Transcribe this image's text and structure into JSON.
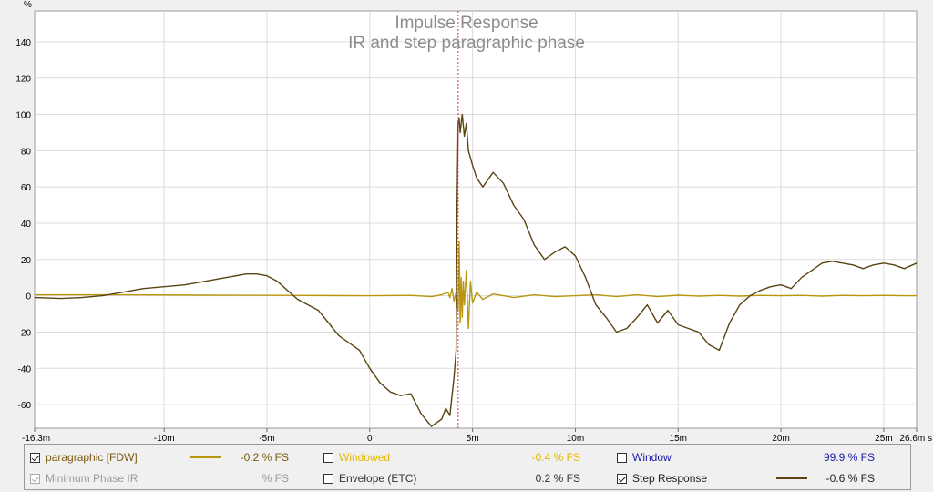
{
  "chart_data": {
    "type": "line",
    "title": "Impulse Response",
    "subtitle": "IR and step paragraphic phase",
    "ylabel": "%",
    "xlabel": "",
    "ylim": [
      -73,
      157
    ],
    "xlim": [
      -16.3,
      26.6
    ],
    "y_ticks": [
      -60,
      -40,
      -20,
      0,
      20,
      40,
      60,
      80,
      100,
      120,
      140
    ],
    "x_ticks": [
      {
        "value": -16.3,
        "label": "-16.3m"
      },
      {
        "value": -10,
        "label": "-10m"
      },
      {
        "value": -5,
        "label": "-5m"
      },
      {
        "value": 0,
        "label": "0"
      },
      {
        "value": 5,
        "label": "5m"
      },
      {
        "value": 10,
        "label": "10m"
      },
      {
        "value": 15,
        "label": "15m"
      },
      {
        "value": 20,
        "label": "20m"
      },
      {
        "value": 25,
        "label": "25m"
      },
      {
        "value": 26.6,
        "label": "26.6m s"
      }
    ],
    "grid": true,
    "marker_x": 4.3,
    "series": [
      {
        "name": "Step Response",
        "color": "#5a4512",
        "x": [
          -16.3,
          -15,
          -14,
          -13,
          -12,
          -11,
          -10,
          -9,
          -8,
          -7,
          -6,
          -5.5,
          -5,
          -4.5,
          -4,
          -3.5,
          -3,
          -2.5,
          -2,
          -1.5,
          -1,
          -0.5,
          0,
          0.5,
          1,
          1.5,
          2,
          2.5,
          3,
          3.5,
          3.7,
          3.9,
          4.0,
          4.1,
          4.2,
          4.25,
          4.3,
          4.35,
          4.4,
          4.5,
          4.6,
          4.7,
          4.8,
          5.0,
          5.2,
          5.5,
          6.0,
          6.5,
          7.0,
          7.5,
          8.0,
          8.5,
          9.0,
          9.5,
          10.0,
          10.5,
          11.0,
          11.5,
          12.0,
          12.5,
          13.0,
          13.5,
          14.0,
          14.5,
          15.0,
          15.5,
          16.0,
          16.5,
          17.0,
          17.5,
          18.0,
          18.5,
          19.0,
          19.5,
          20.0,
          20.5,
          21.0,
          21.5,
          22.0,
          22.5,
          23.0,
          23.5,
          24.0,
          24.5,
          25.0,
          25.5,
          26.0,
          26.6
        ],
        "y": [
          -1,
          -1.5,
          -1,
          0,
          2,
          4,
          5,
          6,
          8,
          10,
          12,
          12,
          11,
          8,
          3,
          -2,
          -5,
          -8,
          -15,
          -22,
          -26,
          -30,
          -40,
          -48,
          -53,
          -55,
          -54,
          -65,
          -72,
          -68,
          -62,
          -66,
          -55,
          -45,
          -30,
          50,
          95,
          98,
          90,
          100,
          88,
          95,
          80,
          72,
          65,
          60,
          68,
          62,
          50,
          42,
          28,
          20,
          24,
          27,
          22,
          10,
          -5,
          -12,
          -20,
          -18,
          -12,
          -5,
          -15,
          -8,
          -16,
          -18,
          -20,
          -27,
          -30,
          -15,
          -5,
          0,
          3,
          5,
          6,
          4,
          10,
          14,
          18,
          19,
          18,
          17,
          15,
          17,
          18,
          17,
          15,
          18
        ]
      },
      {
        "name": "paragraphic [FDW]",
        "color": "#b8960e",
        "x": [
          -16.3,
          -12,
          -8,
          -4,
          0,
          2,
          3,
          3.5,
          3.8,
          3.9,
          4.0,
          4.1,
          4.2,
          4.3,
          4.35,
          4.4,
          4.45,
          4.5,
          4.55,
          4.6,
          4.7,
          4.8,
          4.9,
          5.0,
          5.2,
          5.5,
          6,
          7,
          8,
          9,
          10,
          11,
          12,
          13,
          14,
          15,
          16,
          17,
          18,
          19,
          20,
          21,
          22,
          23,
          24,
          25,
          26,
          26.6
        ],
        "y": [
          0.5,
          0.5,
          0.3,
          0.2,
          0,
          0.2,
          -0.5,
          0.5,
          2,
          -1,
          4,
          -3,
          2,
          -8,
          30,
          -15,
          10,
          -12,
          8,
          -5,
          14,
          -18,
          8,
          -4,
          2,
          -2,
          1,
          -1,
          0.5,
          -0.5,
          0,
          0.5,
          -0.5,
          0.5,
          -0.5,
          0.3,
          -0.2,
          0.2,
          -0.2,
          0.2,
          0,
          0.2,
          -0.2,
          0.2,
          0,
          0.2,
          0,
          0
        ]
      }
    ]
  },
  "legend": {
    "items": [
      {
        "label": "paragraphic [FDW]",
        "checked": true,
        "disabled": false,
        "value": "-0.2 % FS",
        "label_color": "#7a5a10",
        "value_color": "#7a5a10",
        "swatch": "#b8960e"
      },
      {
        "label": "Windowed",
        "checked": false,
        "disabled": false,
        "value": "-0.4 % FS",
        "label_color": "#e5b800",
        "value_color": "#e5b800",
        "swatch": ""
      },
      {
        "label": "Window",
        "checked": false,
        "disabled": false,
        "value": "99.9 % FS",
        "label_color": "#1a1aa8",
        "value_color": "#1a1aa8",
        "swatch": ""
      },
      {
        "label": "Minimum Phase IR",
        "checked": true,
        "disabled": true,
        "value": "% FS",
        "label_color": "#9a9a9a",
        "value_color": "#9a9a9a",
        "swatch": ""
      },
      {
        "label": "Envelope (ETC)",
        "checked": false,
        "disabled": false,
        "value": "0.2 % FS",
        "label_color": "#333333",
        "value_color": "#333333",
        "swatch": ""
      },
      {
        "label": "Step Response",
        "checked": true,
        "disabled": false,
        "value": "-0.6 % FS",
        "label_color": "#222222",
        "value_color": "#222222",
        "swatch": "#5a4512"
      }
    ]
  }
}
